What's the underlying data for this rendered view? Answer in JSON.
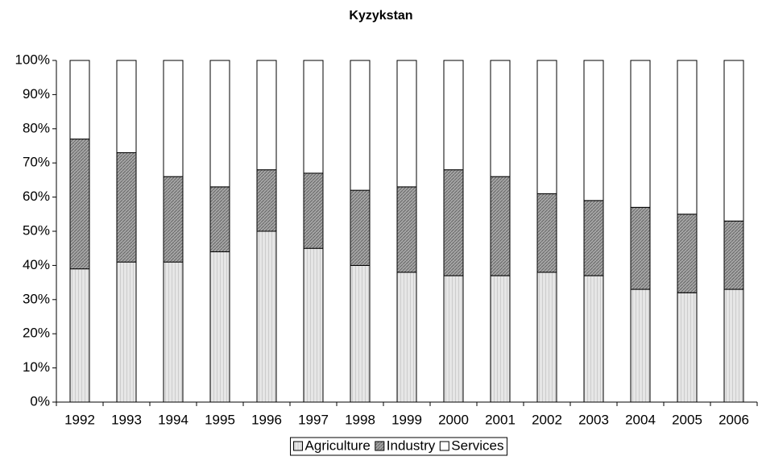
{
  "chart_data": {
    "type": "stacked_bar_100",
    "title": "Kyzykstan",
    "categories": [
      "1992",
      "1993",
      "1994",
      "1995",
      "1996",
      "1997",
      "1998",
      "1999",
      "2000",
      "2001",
      "2002",
      "2003",
      "2004",
      "2005",
      "2006"
    ],
    "series": [
      {
        "name": "Agriculture",
        "color": "#e6e6e6",
        "values": [
          39,
          41,
          41,
          44,
          50,
          45,
          40,
          38,
          37,
          37,
          38,
          37,
          33,
          32,
          33
        ]
      },
      {
        "name": "Industry",
        "color": "#a6a6a6",
        "values": [
          38,
          32,
          25,
          19,
          18,
          22,
          22,
          25,
          31,
          29,
          23,
          22,
          24,
          23,
          20
        ]
      },
      {
        "name": "Services",
        "color": "#ffffff",
        "values": [
          23,
          27,
          34,
          37,
          32,
          33,
          38,
          37,
          32,
          34,
          39,
          41,
          43,
          45,
          47
        ]
      }
    ],
    "ylim": [
      0,
      100
    ],
    "yticks": [
      {
        "value": 0,
        "label": "0%"
      },
      {
        "value": 10,
        "label": "10%"
      },
      {
        "value": 20,
        "label": "20%"
      },
      {
        "value": 30,
        "label": "30%"
      },
      {
        "value": 40,
        "label": "40%"
      },
      {
        "value": 50,
        "label": "50%"
      },
      {
        "value": 60,
        "label": "60%"
      },
      {
        "value": 70,
        "label": "70%"
      },
      {
        "value": 80,
        "label": "80%"
      },
      {
        "value": 90,
        "label": "90%"
      },
      {
        "value": 100,
        "label": "100%"
      }
    ],
    "grid": false,
    "legend": "bottom"
  }
}
